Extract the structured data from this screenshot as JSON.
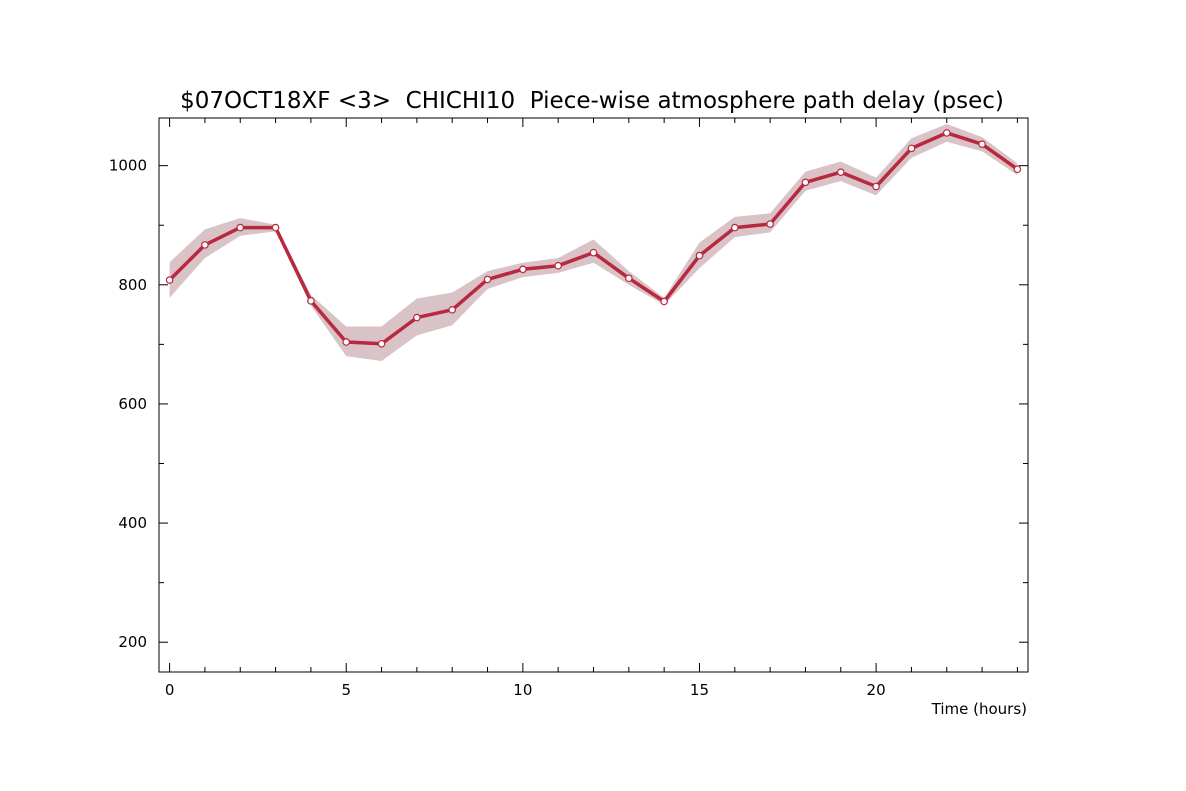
{
  "chart_data": {
    "type": "line",
    "title": "$07OCT18XF <3>  CHICHI10  Piece-wise atmosphere path delay (psec)",
    "xlabel": "Time (hours)",
    "ylabel": "",
    "xlim": [
      -0.3,
      24.3
    ],
    "ylim": [
      150,
      1080
    ],
    "x_ticks": [
      0,
      5,
      10,
      15,
      20
    ],
    "y_ticks": [
      200,
      400,
      600,
      800,
      1000
    ],
    "x_minor_step": 1,
    "y_minor_step": 100,
    "grid": false,
    "colors": {
      "line": "#b8283f",
      "band": "#d9c3c6",
      "marker_fill": "#ffffff"
    },
    "series": [
      {
        "x": [
          0,
          1,
          2,
          3,
          4,
          5,
          6,
          7,
          8,
          9,
          10,
          11,
          12,
          13,
          14,
          15,
          16,
          17,
          18,
          19,
          20,
          21,
          22,
          23,
          24
        ],
        "values": [
          808,
          867,
          896,
          896,
          773,
          704,
          701,
          745,
          758,
          809,
          826,
          832,
          854,
          811,
          772,
          849,
          896,
          902,
          972,
          989,
          965,
          1029,
          1055,
          1036,
          994
        ],
        "lower": [
          778,
          845,
          882,
          890,
          765,
          680,
          672,
          715,
          732,
          793,
          813,
          820,
          837,
          800,
          766,
          828,
          880,
          888,
          958,
          974,
          950,
          1013,
          1040,
          1024,
          984
        ],
        "upper": [
          838,
          893,
          912,
          901,
          783,
          730,
          730,
          777,
          787,
          823,
          837,
          845,
          876,
          823,
          778,
          871,
          914,
          920,
          990,
          1007,
          980,
          1046,
          1070,
          1048,
          1004
        ]
      }
    ]
  }
}
